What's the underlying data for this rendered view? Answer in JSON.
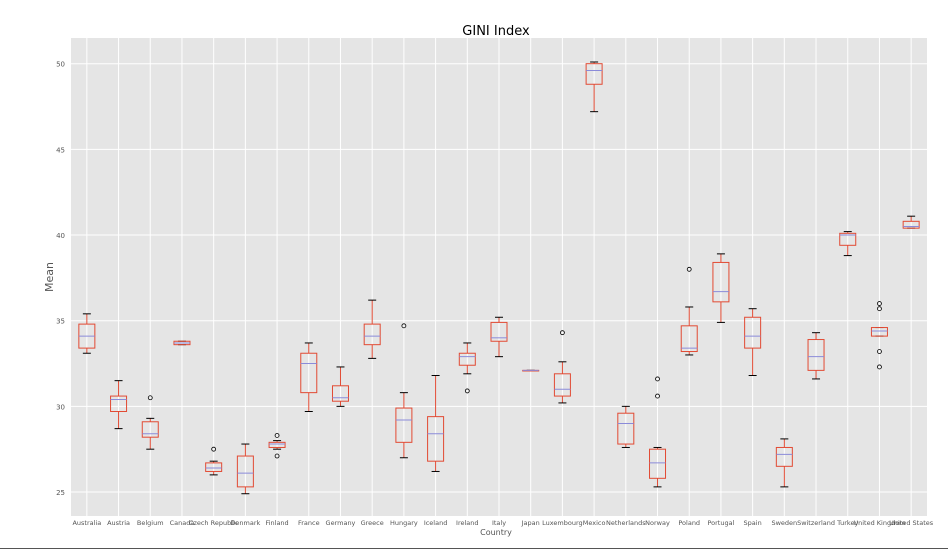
{
  "chart_data": {
    "type": "box",
    "title": "GINI Index",
    "xlabel": "Country",
    "ylabel": "Mean",
    "ylim": [
      23.6,
      51.5
    ],
    "yticks": [
      25,
      30,
      35,
      40,
      45,
      50
    ],
    "grid": true,
    "colors": {
      "background": "#e5e5e5",
      "grid": "#ffffff",
      "box": "#e24a33",
      "median": "#8b8bd9",
      "whisker": "#000000",
      "flier": "#000000"
    },
    "categories": [
      "Australia",
      "Austria",
      "Belgium",
      "Canada",
      "Czech Republic",
      "Denmark",
      "Finland",
      "France",
      "Germany",
      "Greece",
      "Hungary",
      "Iceland",
      "Ireland",
      "Italy",
      "Japan",
      "Luxembourg",
      "Mexico",
      "Netherlands",
      "Norway",
      "Poland",
      "Portugal",
      "Spain",
      "Sweden",
      "Switzerland",
      "Turkey",
      "United Kingdom",
      "United States"
    ],
    "boxes": [
      {
        "whislo": 33.1,
        "q1": 33.4,
        "med": 34.1,
        "q3": 34.8,
        "whishi": 35.4,
        "fliers": []
      },
      {
        "whislo": 28.7,
        "q1": 29.7,
        "med": 30.4,
        "q3": 30.6,
        "whishi": 31.5,
        "fliers": []
      },
      {
        "whislo": 27.5,
        "q1": 28.2,
        "med": 28.4,
        "q3": 29.1,
        "whishi": 29.3,
        "fliers": [
          30.5
        ]
      },
      {
        "whislo": 33.6,
        "q1": 33.6,
        "med": 33.7,
        "q3": 33.8,
        "whishi": 33.8,
        "fliers": []
      },
      {
        "whislo": 26.0,
        "q1": 26.2,
        "med": 26.4,
        "q3": 26.7,
        "whishi": 26.8,
        "fliers": [
          27.5
        ]
      },
      {
        "whislo": 24.9,
        "q1": 25.3,
        "med": 26.1,
        "q3": 27.1,
        "whishi": 27.8,
        "fliers": []
      },
      {
        "whislo": 27.5,
        "q1": 27.6,
        "med": 27.8,
        "q3": 27.9,
        "whishi": 28.0,
        "fliers": [
          28.3,
          27.1
        ]
      },
      {
        "whislo": 29.7,
        "q1": 30.8,
        "med": 32.5,
        "q3": 33.1,
        "whishi": 33.7,
        "fliers": []
      },
      {
        "whislo": 30.0,
        "q1": 30.3,
        "med": 30.5,
        "q3": 31.2,
        "whishi": 32.3,
        "fliers": []
      },
      {
        "whislo": 32.8,
        "q1": 33.6,
        "med": 34.1,
        "q3": 34.8,
        "whishi": 36.2,
        "fliers": []
      },
      {
        "whislo": 27.0,
        "q1": 27.9,
        "med": 29.2,
        "q3": 29.9,
        "whishi": 30.8,
        "fliers": [
          34.7
        ]
      },
      {
        "whislo": 26.2,
        "q1": 26.8,
        "med": 28.4,
        "q3": 29.4,
        "whishi": 31.8,
        "fliers": []
      },
      {
        "whislo": 31.9,
        "q1": 32.4,
        "med": 32.9,
        "q3": 33.1,
        "whishi": 33.7,
        "fliers": [
          30.9
        ]
      },
      {
        "whislo": 32.9,
        "q1": 33.8,
        "med": 34.0,
        "q3": 34.9,
        "whishi": 35.2,
        "fliers": []
      },
      {
        "whislo": 32.1,
        "q1": 32.1,
        "med": 32.1,
        "q3": 32.1,
        "whishi": 32.1,
        "fliers": []
      },
      {
        "whislo": 30.2,
        "q1": 30.6,
        "med": 31.0,
        "q3": 31.9,
        "whishi": 32.6,
        "fliers": [
          34.3
        ]
      },
      {
        "whislo": 47.2,
        "q1": 48.8,
        "med": 49.6,
        "q3": 50.0,
        "whishi": 50.1,
        "fliers": []
      },
      {
        "whislo": 27.6,
        "q1": 27.8,
        "med": 29.0,
        "q3": 29.6,
        "whishi": 30.0,
        "fliers": []
      },
      {
        "whislo": 25.3,
        "q1": 25.8,
        "med": 26.7,
        "q3": 27.5,
        "whishi": 27.6,
        "fliers": [
          31.6,
          30.6
        ]
      },
      {
        "whislo": 33.0,
        "q1": 33.2,
        "med": 33.4,
        "q3": 34.7,
        "whishi": 35.8,
        "fliers": [
          38.0
        ]
      },
      {
        "whislo": 34.9,
        "q1": 36.1,
        "med": 36.7,
        "q3": 38.4,
        "whishi": 38.9,
        "fliers": []
      },
      {
        "whislo": 31.8,
        "q1": 33.4,
        "med": 34.1,
        "q3": 35.2,
        "whishi": 35.7,
        "fliers": []
      },
      {
        "whislo": 25.3,
        "q1": 26.5,
        "med": 27.2,
        "q3": 27.6,
        "whishi": 28.1,
        "fliers": []
      },
      {
        "whislo": 31.6,
        "q1": 32.1,
        "med": 32.9,
        "q3": 33.9,
        "whishi": 34.3,
        "fliers": []
      },
      {
        "whislo": 38.8,
        "q1": 39.4,
        "med": 40.0,
        "q3": 40.1,
        "whishi": 40.2,
        "fliers": []
      },
      {
        "whislo": 34.1,
        "q1": 34.1,
        "med": 34.4,
        "q3": 34.6,
        "whishi": 34.6,
        "fliers": [
          36.0,
          35.7,
          33.2,
          32.3
        ]
      },
      {
        "whislo": 40.4,
        "q1": 40.4,
        "med": 40.5,
        "q3": 40.8,
        "whishi": 41.1,
        "fliers": []
      }
    ]
  }
}
